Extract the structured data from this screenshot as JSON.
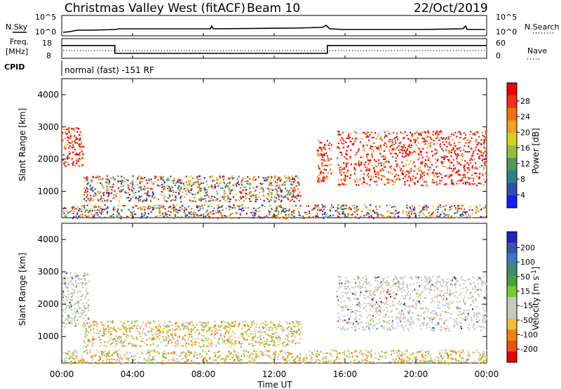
{
  "header": {
    "title": "Christmas Valley West (fitACF)",
    "beam": "Beam 10",
    "date": "22/Oct/2019"
  },
  "side_labels": {
    "nsky": "N.Sky",
    "nsearch": "N.Search",
    "freq_line1": "Freq.",
    "freq_line2": "[MHz]",
    "nave": "Nave",
    "cpid": "CPID",
    "cpid_text": "normal (fast) -151 RF"
  },
  "noise_axis": {
    "left_ticks": [
      "10^5",
      "10^0"
    ],
    "right_ticks": [
      "10^5",
      "10^0"
    ]
  },
  "freq_axis": {
    "left_ticks": [
      "18",
      "8"
    ],
    "right_ticks": [
      "60",
      "0"
    ]
  },
  "time_axis": {
    "label": "Time UT",
    "ticks": [
      "00:00",
      "04:00",
      "08:00",
      "12:00",
      "16:00",
      "20:00",
      "00:00"
    ]
  },
  "range_axis": {
    "label": "Slant Range [km]",
    "ticks": [
      "1000",
      "2000",
      "3000",
      "4000"
    ]
  },
  "power_bar": {
    "label": "Power [dB]",
    "ticks": [
      "4",
      "8",
      "12",
      "16",
      "20",
      "24",
      "28"
    ],
    "colors": [
      "#1a1aff",
      "#3050b0",
      "#2f7f8a",
      "#4f9a5a",
      "#8fc040",
      "#d8d020",
      "#f0a020",
      "#f07010",
      "#f03010",
      "#ee0000"
    ]
  },
  "velocity_bar": {
    "label_main": "Velocity [m s",
    "label_sup": "-1",
    "label_end": "]",
    "ticks": [
      "200",
      "100",
      "50",
      "15",
      "-15",
      "-50",
      "-100",
      "-200"
    ],
    "colors": [
      "#2020c0",
      "#4050b0",
      "#3a7ac0",
      "#3c8a70",
      "#44a040",
      "#77cc33",
      "#c8c8c0",
      "#c8c8c0",
      "#f0c030",
      "#f08010",
      "#f05010",
      "#ee0000"
    ]
  },
  "chart_data": {
    "type": "heatmap",
    "x_range_hours": [
      0,
      24
    ],
    "y_range_km": [
      180,
      4500
    ],
    "frequency_series": [
      {
        "x": [
          0,
          3,
          3,
          15,
          15,
          24
        ],
        "y": [
          14.5,
          14.5,
          10.5,
          10.5,
          14.5,
          14.5
        ]
      }
    ],
    "power_regions": [
      {
        "x": [
          0,
          1.2
        ],
        "y": [
          1800,
          3000
        ],
        "level": "high"
      },
      {
        "x": [
          1.2,
          13.5
        ],
        "y": [
          700,
          1500
        ],
        "level": "mixed"
      },
      {
        "x": [
          0,
          24
        ],
        "y": [
          180,
          600
        ],
        "level": "mixed"
      },
      {
        "x": [
          14.4,
          15.2
        ],
        "y": [
          1300,
          2600
        ],
        "level": "high"
      },
      {
        "x": [
          15.5,
          24
        ],
        "y": [
          1200,
          2900
        ],
        "level": "high"
      }
    ],
    "velocity_regions": [
      {
        "x": [
          0,
          1.5
        ],
        "y": [
          1300,
          3000
        ],
        "level": "low"
      },
      {
        "x": [
          1.2,
          13.5
        ],
        "y": [
          700,
          1500
        ],
        "level": "mixed"
      },
      {
        "x": [
          0,
          24
        ],
        "y": [
          180,
          600
        ],
        "level": "mixed"
      },
      {
        "x": [
          15.5,
          24
        ],
        "y": [
          1200,
          2900
        ],
        "level": "low"
      }
    ]
  }
}
